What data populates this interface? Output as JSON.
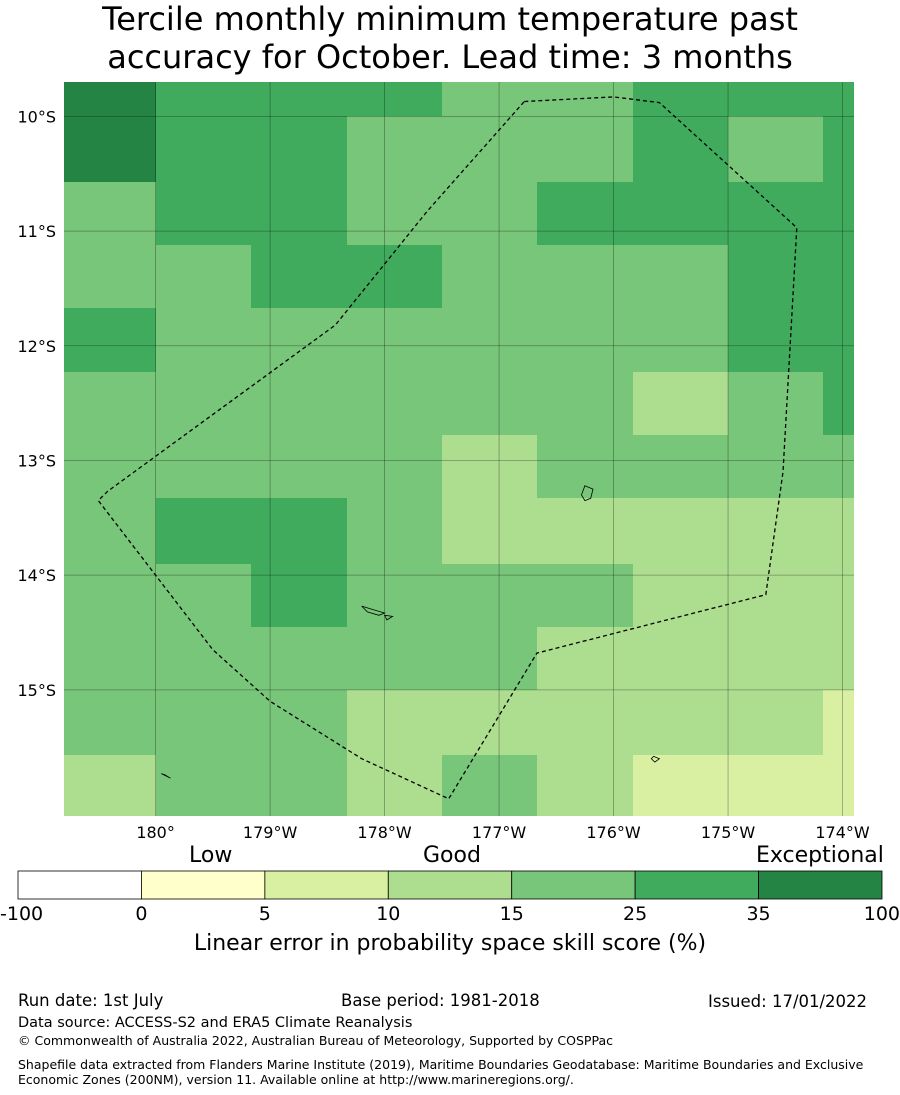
{
  "title_line1": "Tercile monthly minimum temperature past",
  "title_line2": "accuracy for October. Lead time: 3 months",
  "lat_ticks": [
    {
      "label": "10°S",
      "value": -10
    },
    {
      "label": "11°S",
      "value": -11
    },
    {
      "label": "12°S",
      "value": -12
    },
    {
      "label": "13°S",
      "value": -13
    },
    {
      "label": "14°S",
      "value": -14
    },
    {
      "label": "15°S",
      "value": -15
    }
  ],
  "lon_ticks": [
    {
      "label": "180°",
      "value": -180
    },
    {
      "label": "179°W",
      "value": -179
    },
    {
      "label": "178°W",
      "value": -178
    },
    {
      "label": "177°W",
      "value": -177
    },
    {
      "label": "176°W",
      "value": -176
    },
    {
      "label": "175°W",
      "value": -175
    },
    {
      "label": "174°W",
      "value": -174
    }
  ],
  "extent": {
    "lon_min": -180.8,
    "lon_max": -173.9,
    "lat_max": -9.7,
    "lat_min": -16.1
  },
  "grid_cells_note_free": true,
  "grid": {
    "lon_edges": [
      -180.8,
      -180.0,
      -179.17,
      -178.33,
      -177.5,
      -176.67,
      -175.83,
      -175.0,
      -174.17,
      -173.9
    ],
    "lat_edges": [
      -9.7,
      -10.0,
      -10.57,
      -11.12,
      -11.67,
      -12.23,
      -12.78,
      -13.33,
      -13.9,
      -14.45,
      -15.0,
      -15.57,
      -16.1
    ],
    "classes": [
      [
        6,
        5,
        5,
        5,
        4,
        4,
        5,
        5,
        5
      ],
      [
        6,
        5,
        5,
        4,
        4,
        4,
        5,
        4,
        5
      ],
      [
        4,
        5,
        5,
        4,
        4,
        5,
        5,
        5,
        5
      ],
      [
        4,
        4,
        5,
        5,
        4,
        4,
        4,
        5,
        5
      ],
      [
        5,
        4,
        4,
        4,
        4,
        4,
        4,
        5,
        5
      ],
      [
        4,
        4,
        4,
        4,
        4,
        4,
        3,
        4,
        5
      ],
      [
        4,
        4,
        4,
        4,
        3,
        4,
        4,
        4,
        4
      ],
      [
        4,
        5,
        5,
        4,
        3,
        3,
        3,
        3,
        3
      ],
      [
        4,
        4,
        5,
        4,
        4,
        4,
        3,
        3,
        3
      ],
      [
        4,
        4,
        4,
        4,
        4,
        3,
        3,
        3,
        3
      ],
      [
        4,
        4,
        4,
        3,
        3,
        3,
        3,
        3,
        2
      ],
      [
        3,
        4,
        4,
        3,
        4,
        3,
        2,
        2,
        2
      ]
    ]
  },
  "eez_boundary": [
    [
      -176.78,
      -9.87
    ],
    [
      -176.0,
      -9.83
    ],
    [
      -175.6,
      -9.88
    ],
    [
      -174.4,
      -10.97
    ],
    [
      -174.52,
      -13.1
    ],
    [
      -174.67,
      -14.17
    ],
    [
      -176.67,
      -14.68
    ],
    [
      -177.44,
      -15.95
    ],
    [
      -178.2,
      -15.6
    ],
    [
      -179.0,
      -15.1
    ],
    [
      -179.5,
      -14.65
    ],
    [
      -180.5,
      -13.35
    ],
    [
      -180.42,
      -13.27
    ],
    [
      -178.43,
      -11.82
    ],
    [
      -177.63,
      -10.83
    ],
    [
      -176.78,
      -9.87
    ]
  ],
  "islands": [
    [
      [
        -176.25,
        -13.22
      ],
      [
        -176.18,
        -13.25
      ],
      [
        -176.2,
        -13.33
      ],
      [
        -176.25,
        -13.35
      ],
      [
        -176.28,
        -13.3
      ],
      [
        -176.25,
        -13.22
      ]
    ],
    [
      [
        -178.2,
        -14.27
      ],
      [
        -178.1,
        -14.3
      ],
      [
        -178.0,
        -14.33
      ],
      [
        -178.05,
        -14.35
      ],
      [
        -178.15,
        -14.32
      ],
      [
        -178.2,
        -14.27
      ]
    ],
    [
      [
        -178.0,
        -14.35
      ],
      [
        -177.93,
        -14.36
      ],
      [
        -177.98,
        -14.39
      ],
      [
        -178.0,
        -14.35
      ]
    ],
    [
      [
        -175.65,
        -15.58
      ],
      [
        -175.6,
        -15.6
      ],
      [
        -175.64,
        -15.63
      ],
      [
        -175.67,
        -15.6
      ],
      [
        -175.65,
        -15.58
      ]
    ],
    [
      [
        -179.95,
        -15.73
      ],
      [
        -179.87,
        -15.77
      ],
      [
        -179.92,
        -15.74
      ],
      [
        -179.95,
        -15.73
      ]
    ]
  ],
  "colorbar": {
    "categories": [
      {
        "label": "Low",
        "position": "left"
      },
      {
        "label": "Good",
        "position": "center"
      },
      {
        "label": "Exceptional",
        "position": "right"
      }
    ],
    "bins": [
      {
        "from": -100,
        "to": 0,
        "color": "#ffffff"
      },
      {
        "from": 0,
        "to": 5,
        "color": "#ffffcc"
      },
      {
        "from": 5,
        "to": 10,
        "color": "#d9f0a3"
      },
      {
        "from": 10,
        "to": 15,
        "color": "#addd8e"
      },
      {
        "from": 15,
        "to": 25,
        "color": "#78c679"
      },
      {
        "from": 25,
        "to": 35,
        "color": "#41ab5d"
      },
      {
        "from": 35,
        "to": 100,
        "color": "#238443"
      }
    ],
    "ticks": [
      "-100",
      "0",
      "5",
      "10",
      "15",
      "25",
      "35",
      "100"
    ],
    "label": "Linear error in probability space skill score (%)"
  },
  "footer": {
    "run_date": "Run date: 1st July",
    "base_period": "Base period: 1981-2018",
    "issued": "Issued: 17/01/2022",
    "data_source": "Data source: ACCESS-S2 and ERA5 Climate Reanalysis",
    "copyright": "© Commonwealth of Australia 2022, Australian Bureau of Meteorology, Supported by COSPPac",
    "shapefile": "Shapefile data extracted from Flanders Marine Institute (2019), Maritime Boundaries Geodatabase: Maritime Boundaries and Exclusive Economic Zones (200NM), version 11. Available online at http://www.marineregions.org/."
  }
}
